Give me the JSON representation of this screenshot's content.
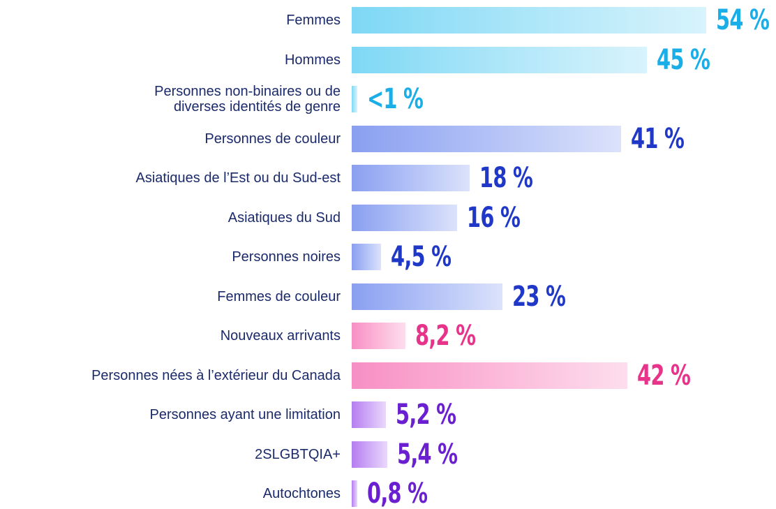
{
  "chart_data": {
    "type": "bar",
    "orientation": "horizontal",
    "categories": [
      "Femmes",
      "Hommes",
      "Personnes non-binaires ou de\ndiverses identités de genre",
      "Personnes de couleur",
      "Asiatiques de l’Est ou du Sud-est",
      "Asiatiques du Sud",
      "Personnes noires",
      "Femmes de couleur",
      "Nouveaux arrivants",
      "Personnes nées à l’extérieur du Canada",
      "Personnes ayant une limitation",
      "2SLGBTQIA+",
      "Autochtones"
    ],
    "values": [
      54,
      45,
      0.9,
      41,
      18,
      16,
      4.5,
      23,
      8.2,
      42,
      5.2,
      5.4,
      0.8
    ],
    "value_labels": [
      "54 %",
      "45 %",
      "<1 %",
      "41 %",
      "18 %",
      "16 %",
      "4,5 %",
      "23 %",
      "8,2 %",
      "42 %",
      "5,2 %",
      "5,4 %",
      "0,8 %"
    ],
    "colors": [
      "#7dd8f5",
      "#7dd8f5",
      "#7dd8f5",
      "#8a9ff0",
      "#8a9ff0",
      "#8a9ff0",
      "#8a9ff0",
      "#8a9ff0",
      "#f78fc4",
      "#f78fc4",
      "#b67cf0",
      "#b67cf0",
      "#b67cf0"
    ],
    "value_label_colors": [
      "#1aaee8",
      "#1aaee8",
      "#1aaee8",
      "#2038c8",
      "#2038c8",
      "#2038c8",
      "#2038c8",
      "#2038c8",
      "#e8338a",
      "#e8338a",
      "#6a1fd0",
      "#6a1fd0",
      "#6a1fd0"
    ]
  }
}
